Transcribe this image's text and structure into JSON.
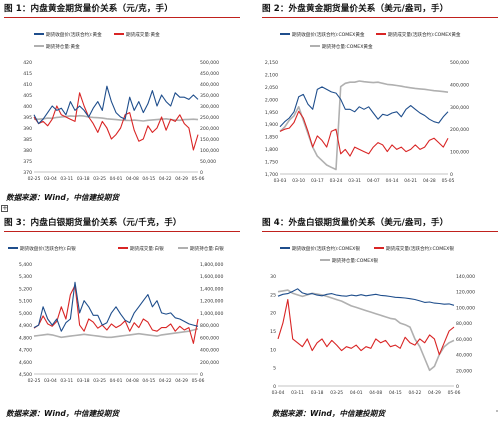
{
  "colors": {
    "price": "#1f4e8c",
    "volume": "#d92525",
    "oi": "#b0b0b0",
    "title_rule": "#c0211d"
  },
  "panels": [
    {
      "id": "p1",
      "title": "图 1：内盘黄金期货量价关系（元/克，手）",
      "source": "数据来源：Wind，中信建投期货"
    },
    {
      "id": "p2",
      "title": "图 2：外盘黄金期货量价关系（美元/盎司，手）",
      "source": ""
    },
    {
      "id": "p3",
      "title": "图 3：内盘白银期货量价关系（元/千克，手）",
      "source": "数据来源：Wind，中信建投期货"
    },
    {
      "id": "p4",
      "title": "图 4：外盘白银期货量价关系（美元/盎司，手）",
      "source": "数据来源：Wind，中信建投期货"
    }
  ],
  "chart_data": [
    {
      "id": "p1",
      "type": "line",
      "legend": [
        "期货收盘价(活跃合约):黄金",
        "期货成交量:黄金",
        "期货持仓量:黄金"
      ],
      "legend_position": "top",
      "x_labels": [
        "02-25",
        "03-04",
        "03-11",
        "03-18",
        "03-25",
        "04-01",
        "04-08",
        "04-15",
        "04-22",
        "04-29",
        "05-06"
      ],
      "ylim_left": [
        370,
        420
      ],
      "yticks_left": [
        "420",
        "415",
        "410",
        "405",
        "400",
        "395",
        "390",
        "385",
        "380",
        "375",
        "370"
      ],
      "ylim_right": [
        0,
        500000
      ],
      "yticks_right": [
        "500,000",
        "450,000",
        "400,000",
        "350,000",
        "300,000",
        "250,000",
        "200,000",
        "150,000",
        "100,000",
        "50,000",
        "0"
      ],
      "series": [
        {
          "name": "期货收盘价(活跃合约):黄金",
          "axis": "left",
          "color_key": "price",
          "values": [
            396,
            392,
            394,
            397,
            400,
            398,
            399,
            396,
            402,
            398,
            400,
            398,
            395,
            399,
            402,
            398,
            409,
            402,
            397,
            395,
            394,
            404,
            398,
            402,
            397,
            401,
            407,
            400,
            405,
            402,
            400,
            406,
            404,
            404,
            403,
            405,
            403
          ]
        },
        {
          "name": "期货成交量:黄金",
          "axis": "right",
          "color_key": "volume",
          "values": [
            250000,
            220000,
            230000,
            210000,
            240000,
            300000,
            260000,
            250000,
            240000,
            230000,
            360000,
            300000,
            250000,
            220000,
            180000,
            230000,
            200000,
            150000,
            170000,
            200000,
            260000,
            270000,
            190000,
            140000,
            150000,
            210000,
            180000,
            200000,
            250000,
            190000,
            240000,
            230000,
            260000,
            220000,
            200000,
            100000,
            170000
          ]
        },
        {
          "name": "期货持仓量:黄金",
          "axis": "right",
          "color_key": "oi",
          "values": [
            240000,
            240000,
            242000,
            245000,
            244000,
            248000,
            250000,
            252000,
            255000,
            253000,
            256000,
            254000,
            250000,
            248000,
            247000,
            245000,
            242000,
            240000,
            238000,
            236000,
            235000,
            234000,
            236000,
            234000,
            232000,
            235000,
            237000,
            238000,
            240000,
            242000,
            238000,
            236000,
            235000,
            238000,
            239000,
            240000,
            238000
          ]
        }
      ]
    },
    {
      "id": "p2",
      "type": "line",
      "legend": [
        "期货收盘价(活跃合约):COMEX黄金",
        "期货成交量(活跃合约):COMEX黄金",
        "期货持仓量:COMEX黄金"
      ],
      "legend_position": "top",
      "x_labels": [
        "03-03",
        "03-10",
        "03-17",
        "03-24",
        "03-31",
        "04-07",
        "04-14",
        "04-21",
        "04-28",
        "05-05"
      ],
      "ylim_left": [
        1700,
        2150
      ],
      "yticks_left": [
        "2,150",
        "2,100",
        "2,050",
        "2,000",
        "1,950",
        "1,900",
        "1,850",
        "1,800",
        "1,750",
        "1,700"
      ],
      "ylim_right": [
        0,
        500000
      ],
      "yticks_right": [
        "500,000",
        "400,000",
        "300,000",
        "200,000",
        "100,000",
        "0"
      ],
      "series": [
        {
          "name": "期货收盘价(活跃合约):COMEX黄金",
          "axis": "left",
          "color_key": "price",
          "values": [
            1890,
            1910,
            1925,
            1950,
            2010,
            2020,
            1980,
            1960,
            2040,
            2050,
            2040,
            2030,
            2025,
            2000,
            1960,
            1960,
            1950,
            1970,
            1960,
            1970,
            1945,
            1920,
            1940,
            1935,
            1945,
            1950,
            1930,
            1960,
            1975,
            1960,
            1945,
            1935,
            1920,
            1910,
            1905,
            1930,
            1950
          ]
        },
        {
          "name": "期货成交量(活跃合约):COMEX黄金",
          "axis": "right",
          "color_key": "volume",
          "values": [
            190000,
            200000,
            205000,
            230000,
            280000,
            250000,
            190000,
            120000,
            170000,
            150000,
            120000,
            190000,
            200000,
            90000,
            110000,
            80000,
            120000,
            110000,
            100000,
            90000,
            120000,
            140000,
            130000,
            100000,
            130000,
            110000,
            120000,
            100000,
            110000,
            130000,
            110000,
            120000,
            150000,
            160000,
            140000,
            120000,
            160000
          ]
        },
        {
          "name": "期货持仓量:COMEX黄金",
          "axis": "right",
          "color_key": "oi",
          "values": [
            190000,
            210000,
            240000,
            260000,
            300000,
            240000,
            180000,
            120000,
            80000,
            60000,
            40000,
            30000,
            20000,
            390000,
            405000,
            410000,
            410000,
            415000,
            412000,
            410000,
            408000,
            410000,
            405000,
            400000,
            398000,
            395000,
            392000,
            388000,
            385000,
            382000,
            380000,
            378000,
            375000,
            372000,
            370000,
            368000,
            365000
          ]
        }
      ]
    },
    {
      "id": "p3",
      "type": "line",
      "legend": [
        "期货收盘价(活跃合约):白银",
        "期货成交量:白银",
        "期货持仓量:白银"
      ],
      "legend_position": "top",
      "x_labels": [
        "02-25",
        "03-04",
        "03-11",
        "03-18",
        "03-25",
        "04-01",
        "04-08",
        "04-15",
        "04-22",
        "04-29",
        "05-06"
      ],
      "ylim_left": [
        4500,
        5400
      ],
      "yticks_left": [
        "5,400",
        "5,300",
        "5,200",
        "5,100",
        "5,000",
        "4,900",
        "4,800",
        "4,700",
        "4,600",
        "4,500"
      ],
      "ylim_right": [
        0,
        1800000
      ],
      "yticks_right": [
        "1,800,000",
        "1,600,000",
        "1,400,000",
        "1,200,000",
        "1,000,000",
        "800,000",
        "600,000",
        "400,000",
        "200,000",
        "0"
      ],
      "series": [
        {
          "name": "期货收盘价(活跃合约):白银",
          "axis": "left",
          "color_key": "price",
          "values": [
            4880,
            4900,
            5050,
            4950,
            4900,
            4950,
            4850,
            4920,
            4950,
            5250,
            5000,
            5100,
            5050,
            4980,
            4980,
            4900,
            4920,
            5000,
            5050,
            4990,
            4940,
            4920,
            5000,
            5050,
            5100,
            5150,
            5050,
            5100,
            5000,
            4990,
            5000,
            4960,
            4950,
            4930,
            4910,
            4900,
            4890
          ]
        },
        {
          "name": "期货成交量:白银",
          "axis": "right",
          "color_key": "volume",
          "values": [
            750000,
            800000,
            950000,
            820000,
            780000,
            860000,
            1100000,
            900000,
            1300000,
            1450000,
            800000,
            700000,
            900000,
            850000,
            750000,
            800000,
            720000,
            820000,
            760000,
            800000,
            870000,
            700000,
            840000,
            760000,
            900000,
            850000,
            720000,
            700000,
            760000,
            760000,
            820000,
            700000,
            780000,
            720000,
            760000,
            500000,
            900000
          ]
        },
        {
          "name": "期货持仓量:白银",
          "axis": "right",
          "color_key": "oi",
          "values": [
            620000,
            630000,
            640000,
            650000,
            640000,
            620000,
            600000,
            610000,
            620000,
            630000,
            640000,
            650000,
            640000,
            630000,
            620000,
            610000,
            600000,
            600000,
            610000,
            620000,
            630000,
            640000,
            650000,
            660000,
            650000,
            640000,
            630000,
            620000,
            640000,
            650000,
            660000,
            670000,
            680000,
            690000,
            700000,
            720000,
            740000
          ]
        }
      ]
    },
    {
      "id": "p4",
      "type": "line",
      "legend": [
        "期货收盘价(活跃合约):COMEX银",
        "期货成交量(活跃合约):COMEX银",
        "期货持仓量:COMEX银"
      ],
      "legend_position": "top",
      "x_labels": [
        "03-04",
        "03-11",
        "03-18",
        "03-25",
        "04-01",
        "04-08",
        "04-15",
        "04-22",
        "04-29",
        "05-06"
      ],
      "ylim_left": [
        0,
        30
      ],
      "yticks_left": [
        "30",
        "25",
        "20",
        "15",
        "10",
        "5",
        "0"
      ],
      "ylim_right": [
        0,
        140000
      ],
      "yticks_right": [
        "140,000",
        "120,000",
        "100,000",
        "80,000",
        "60,000",
        "40,000",
        "20,000",
        "0"
      ],
      "series": [
        {
          "name": "期货收盘价(活跃合约):COMEX银",
          "axis": "left",
          "color_key": "price",
          "values": [
            24.5,
            25.0,
            25.2,
            25.8,
            26.5,
            25.4,
            25.0,
            25.2,
            24.8,
            24.6,
            25.0,
            25.2,
            24.8,
            24.6,
            24.5,
            24.8,
            24.6,
            24.9,
            24.6,
            24.8,
            25.0,
            24.7,
            24.6,
            24.4,
            24.2,
            24.1,
            24.0,
            23.8,
            23.6,
            23.2,
            22.8,
            22.9,
            22.6,
            22.5,
            22.3,
            22.4,
            22.0
          ]
        },
        {
          "name": "期货成交量(活跃合约):COMEX银",
          "axis": "right",
          "color_key": "volume",
          "values": [
            60000,
            80000,
            110000,
            60000,
            55000,
            50000,
            60000,
            45000,
            55000,
            60000,
            50000,
            58000,
            52000,
            45000,
            50000,
            48000,
            52000,
            45000,
            50000,
            48000,
            60000,
            55000,
            58000,
            50000,
            52000,
            48000,
            62000,
            55000,
            52000,
            60000,
            55000,
            65000,
            60000,
            40000,
            55000,
            70000,
            75000
          ]
        },
        {
          "name": "期货持仓量:COMEX银",
          "axis": "right",
          "color_key": "oi",
          "values": [
            120000,
            121000,
            122000,
            118000,
            116000,
            114000,
            116000,
            118000,
            117000,
            116000,
            114000,
            112000,
            110000,
            108000,
            105000,
            102000,
            100000,
            98000,
            96000,
            94000,
            92000,
            90000,
            88000,
            86000,
            85000,
            80000,
            78000,
            75000,
            60000,
            50000,
            35000,
            20000,
            25000,
            40000,
            50000,
            55000,
            58000
          ]
        }
      ]
    }
  ]
}
